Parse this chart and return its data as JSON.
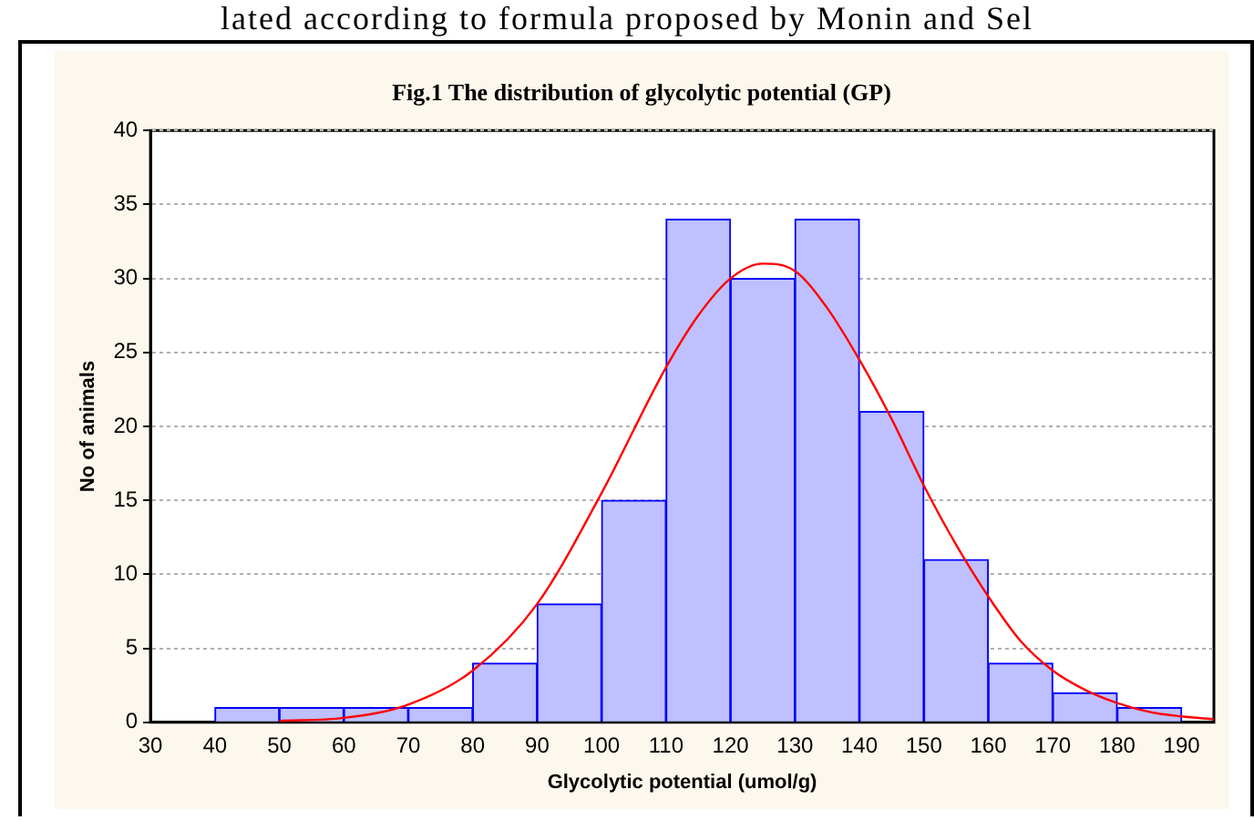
{
  "chart_data": {
    "type": "histogram",
    "title": "Fig.1 The distribution of glycolytic potential (GP)",
    "xlabel": "Glycolytic potential (umol/g)",
    "ylabel": "No of animals",
    "annotations": [
      "lated according to formula proposed by Monin and Sel"
    ],
    "bins": [
      40,
      50,
      60,
      70,
      80,
      90,
      100,
      110,
      120,
      130,
      140,
      150,
      160,
      170,
      180,
      190
    ],
    "values": [
      1,
      1,
      1,
      1,
      4,
      8,
      15,
      34,
      30,
      34,
      21,
      11,
      4,
      2,
      1
    ],
    "color": "#bfc0ff",
    "series": [
      {
        "type": "line",
        "color": "#ff0000",
        "x": [
          50,
          60,
          70,
          80,
          90,
          100,
          110,
          115,
          120,
          125,
          130,
          135,
          140,
          145,
          150,
          155,
          160,
          165,
          170,
          175,
          180,
          185,
          190,
          195
        ],
        "values": [
          0.1,
          0.3,
          1.2,
          3.5,
          8,
          15.5,
          24,
          27.5,
          30,
          31,
          30.5,
          28,
          24.5,
          20.5,
          16,
          12,
          8.5,
          5.5,
          3.5,
          2.2,
          1.3,
          0.7,
          0.4,
          0.2
        ]
      }
    ],
    "xlim": [
      30,
      195
    ],
    "xticks": [
      30,
      40,
      50,
      60,
      70,
      80,
      90,
      100,
      110,
      120,
      130,
      140,
      150,
      160,
      170,
      180,
      190
    ],
    "ylim": [
      0,
      40
    ],
    "yticks": [
      0,
      5,
      10,
      15,
      20,
      25,
      30,
      35,
      40
    ],
    "grid": "y",
    "legend": false
  }
}
